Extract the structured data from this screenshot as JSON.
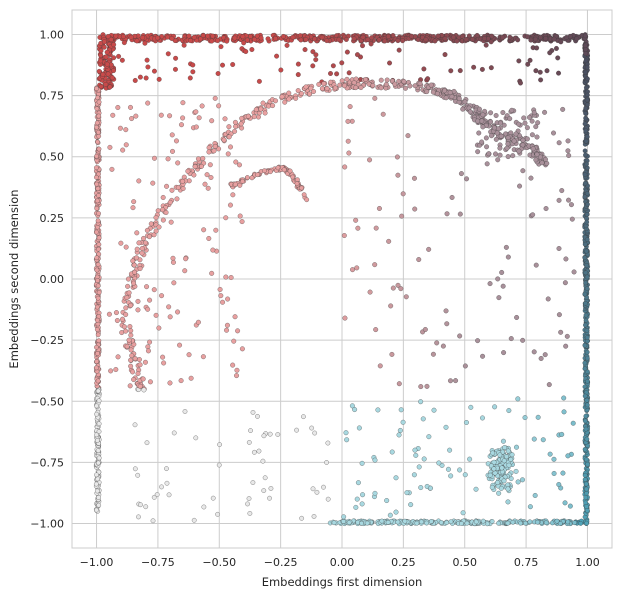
{
  "chart_data": {
    "type": "scatter",
    "title": "",
    "xlabel": "Embeddings first dimension",
    "ylabel": "Embeddings second dimension",
    "xlim": [
      -1.1,
      1.1
    ],
    "ylim": [
      -1.1,
      1.1
    ],
    "xticks": [
      -1.0,
      -0.75,
      -0.5,
      -0.25,
      0.0,
      0.25,
      0.5,
      0.75,
      1.0
    ],
    "yticks": [
      -1.0,
      -0.75,
      -0.5,
      -0.25,
      0.0,
      0.25,
      0.5,
      0.75,
      1.0
    ],
    "xtick_labels": [
      "−1.00",
      "−0.75",
      "−0.50",
      "−0.25",
      "0.00",
      "0.25",
      "0.50",
      "0.75",
      "1.00"
    ],
    "ytick_labels": [
      "−1.00",
      "−0.75",
      "−0.50",
      "−0.25",
      "0.00",
      "0.25",
      "0.50",
      "0.75",
      "1.00"
    ],
    "grid": true,
    "legend": "none",
    "colormap": [
      "#e8e8e8",
      "#a8d8e0",
      "#4fa3b8",
      "#4a4a5a",
      "#c84a4a",
      "#e8a0a0"
    ],
    "colors": {
      "light_gray": "#e8e8e8",
      "light_blue": "#a8d8e0",
      "teal": "#4fa3b8",
      "dark": "#4a4a5a",
      "red": "#c84a4a",
      "pink": "#e8a0a0",
      "mauve": "#a8909a"
    },
    "features": [
      {
        "shape": "left-edge",
        "x": -1.0,
        "y_range": [
          -0.95,
          1.0
        ],
        "color": "pink"
      },
      {
        "shape": "left-edge",
        "x": -1.0,
        "y_range": [
          -0.95,
          -0.45
        ],
        "color": "light_gray"
      },
      {
        "shape": "top-edge",
        "y": 1.0,
        "x_range": [
          -1.0,
          1.0
        ],
        "color": "red"
      },
      {
        "shape": "right-edge",
        "x": 1.0,
        "y_range": [
          -1.0,
          1.0
        ],
        "color": "teal"
      },
      {
        "shape": "bottom-edge",
        "y": -1.0,
        "x_range": [
          -0.05,
          1.0
        ],
        "color": "light_blue"
      },
      {
        "shape": "arc",
        "points": [
          [
            -0.82,
            -0.45
          ],
          [
            -0.88,
            -0.15
          ],
          [
            -0.8,
            0.15
          ],
          [
            -0.6,
            0.45
          ],
          [
            -0.35,
            0.68
          ],
          [
            -0.1,
            0.78
          ],
          [
            0.1,
            0.8
          ],
          [
            0.35,
            0.78
          ],
          [
            0.5,
            0.72
          ],
          [
            0.6,
            0.62
          ],
          [
            0.75,
            0.55
          ],
          [
            0.82,
            0.48
          ]
        ],
        "color": "pink_to_mauve"
      },
      {
        "shape": "inner-arc",
        "points": [
          [
            -0.45,
            0.38
          ],
          [
            -0.35,
            0.43
          ],
          [
            -0.25,
            0.45
          ],
          [
            -0.2,
            0.42
          ],
          [
            -0.15,
            0.33
          ]
        ],
        "color": "pink"
      },
      {
        "shape": "cluster",
        "center": [
          0.65,
          -0.78
        ],
        "color": "light_blue"
      }
    ]
  }
}
